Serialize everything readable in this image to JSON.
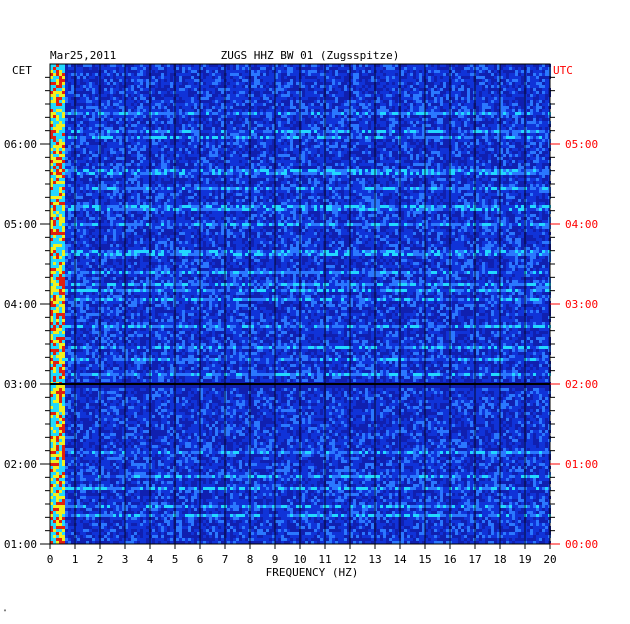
{
  "chart_data": {
    "type": "heatmap",
    "title": "ZUGS HHZ BW 01 (Zugsspitze)",
    "date": "Mar25,2011",
    "left_axis_label": "CET",
    "right_axis_label": "UTC",
    "xlabel": "FREQUENCY (HZ)",
    "xlim": [
      0,
      20
    ],
    "x_ticks": [
      "0",
      "1",
      "2",
      "3",
      "4",
      "5",
      "6",
      "7",
      "8",
      "9",
      "10",
      "11",
      "12",
      "13",
      "14",
      "15",
      "16",
      "17",
      "18",
      "19",
      "20"
    ],
    "cet_ticks": [
      {
        "hours_after_start": 0,
        "label": "01:00"
      },
      {
        "hours_after_start": 1,
        "label": "02:00"
      },
      {
        "hours_after_start": 2,
        "label": "03:00"
      },
      {
        "hours_after_start": 3,
        "label": "04:00"
      },
      {
        "hours_after_start": 4,
        "label": "05:00"
      },
      {
        "hours_after_start": 5,
        "label": "06:00"
      }
    ],
    "utc_ticks": [
      {
        "hours_after_start": 0,
        "label": "00:00"
      },
      {
        "hours_after_start": 1,
        "label": "01:00"
      },
      {
        "hours_after_start": 2,
        "label": "02:00"
      },
      {
        "hours_after_start": 3,
        "label": "03:00"
      },
      {
        "hours_after_start": 4,
        "label": "04:00"
      },
      {
        "hours_after_start": 5,
        "label": "05:00"
      }
    ],
    "time_span_hours": 6,
    "grid": true,
    "colors": {
      "background": "#1033d8",
      "low": "#1020b0",
      "mid": "#2a78ff",
      "high_cyan": "#22d8ff",
      "low_freq_yellow": "#f0f020",
      "low_freq_red": "#e02010",
      "utc_label": "#ff0000",
      "grid_line": "#000000"
    },
    "features": {
      "low_frequency_band_hz": [
        0,
        0.6
      ],
      "quiet_gap_at_hour": 2.0
    }
  }
}
